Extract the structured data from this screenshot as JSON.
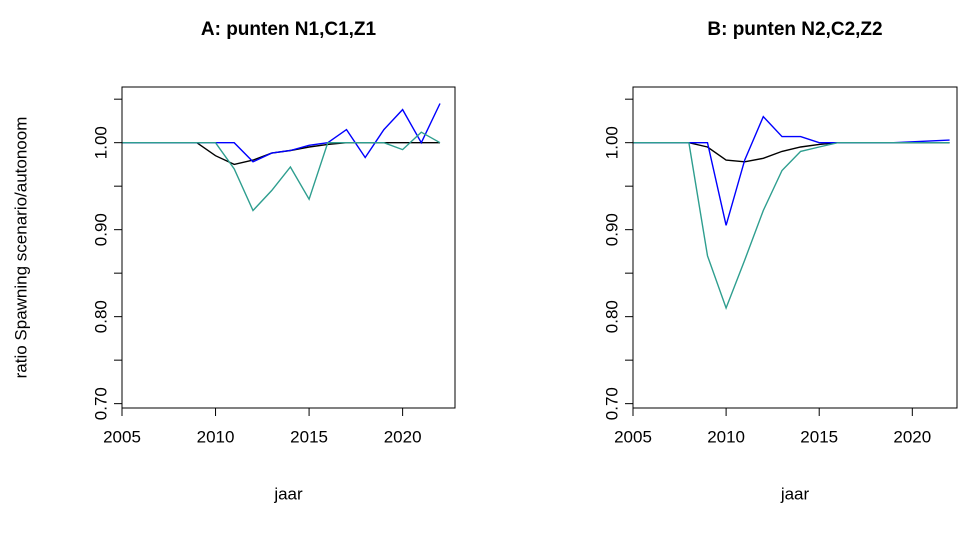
{
  "chart_data": [
    {
      "type": "line",
      "title": "A: punten N1,C1,Z1",
      "x_label": "jaar",
      "y_label": "ratio Spawning scenario/autonoom",
      "x": [
        2005,
        2006,
        2007,
        2008,
        2009,
        2010,
        2011,
        2012,
        2013,
        2014,
        2015,
        2016,
        2017,
        2018,
        2019,
        2020,
        2021,
        2022
      ],
      "series": [
        {
          "color": "#000000",
          "values": [
            1,
            1,
            1,
            1,
            1,
            0.985,
            0.975,
            0.98,
            0.988,
            0.991,
            0.995,
            0.998,
            1,
            1,
            1,
            1,
            1,
            1
          ]
        },
        {
          "color": "#0000ff",
          "values": [
            1,
            1,
            1,
            1,
            1,
            1,
            1,
            0.978,
            0.988,
            0.991,
            0.997,
            1,
            1.015,
            0.983,
            1.015,
            1.038,
            1,
            1.045
          ]
        },
        {
          "color": "#2e9e8f",
          "values": [
            1,
            1,
            1,
            1,
            1,
            1,
            0.97,
            0.922,
            0.945,
            0.972,
            0.935,
            1,
            1,
            1,
            1,
            0.992,
            1.012,
            1
          ]
        }
      ],
      "xlim": [
        2005,
        2022.8
      ],
      "xticks": [
        2005,
        2010,
        2015,
        2020
      ],
      "ylim": [
        0.695,
        1.064
      ],
      "yticks": [
        {
          "value": 0.7,
          "label": "0.70"
        },
        {
          "value": 0.75,
          "label": null
        },
        {
          "value": 0.8,
          "label": "0.80"
        },
        {
          "value": 0.85,
          "label": null
        },
        {
          "value": 0.9,
          "label": "0.90"
        },
        {
          "value": 0.95,
          "label": null
        },
        {
          "value": 1,
          "label": "1.00"
        },
        {
          "value": 1.05,
          "label": null
        }
      ]
    },
    {
      "type": "line",
      "title": "B: punten N2,C2,Z2",
      "x_label": "jaar",
      "x": [
        2005,
        2006,
        2007,
        2008,
        2009,
        2010,
        2011,
        2012,
        2013,
        2014,
        2015,
        2016,
        2017,
        2018,
        2019,
        2020,
        2021,
        2022
      ],
      "series": [
        {
          "color": "#000000",
          "values": [
            1,
            1,
            1,
            1,
            0.995,
            0.98,
            0.978,
            0.982,
            0.99,
            0.995,
            0.998,
            1,
            1,
            1,
            1,
            1,
            1,
            1
          ]
        },
        {
          "color": "#0000ff",
          "values": [
            1,
            1,
            1,
            1,
            1,
            0.905,
            0.98,
            1.03,
            1.007,
            1.007,
            1,
            1,
            1,
            1,
            1,
            1.001,
            1.002,
            1.003
          ]
        },
        {
          "color": "#2e9e8f",
          "values": [
            1,
            1,
            1,
            1,
            0.87,
            0.81,
            0.865,
            0.922,
            0.968,
            0.99,
            0.995,
            1,
            1,
            1,
            1,
            1,
            1,
            1
          ]
        }
      ],
      "xlim": [
        2005,
        2022.4
      ],
      "xticks": [
        2005,
        2010,
        2015,
        2020
      ],
      "ylim": [
        0.695,
        1.064
      ],
      "yticks": [
        {
          "value": 0.7,
          "label": "0.70"
        },
        {
          "value": 0.75,
          "label": null
        },
        {
          "value": 0.8,
          "label": "0.80"
        },
        {
          "value": 0.85,
          "label": null
        },
        {
          "value": 0.9,
          "label": "0.90"
        },
        {
          "value": 0.95,
          "label": null
        },
        {
          "value": 1,
          "label": "1.00"
        },
        {
          "value": 1.05,
          "label": null
        }
      ]
    }
  ]
}
